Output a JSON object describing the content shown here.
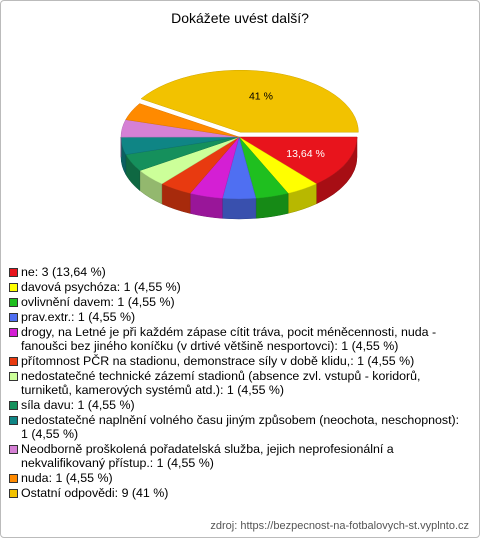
{
  "chart_data": {
    "type": "pie",
    "title": "Dokážete uvést další?",
    "categories": [
      "ne: 3 (13,64 %)",
      "davová psychóza: 1 (4,55 %)",
      "ovlivnění davem: 1 (4,55 %)",
      "prav.extr.: 1 (4,55 %)",
      "drogy, na Letné je při každém zápase cítit tráva, pocit méněcennosti,  nuda - fanoušci bez jiného koníčku  (v drtivé většině nesportovci): 1 (4,55 %)",
      "přítomnost PČR na stadionu, demonstrace síly v době klidu,: 1 (4,55 %)",
      "nedostatečné technické zázemí stadionů (absence zvl. vstupů - koridorů, turniketů, kamerových systémů atd.): 1 (4,55 %)",
      "síla davu: 1 (4,55 %)",
      "nedostatečné naplnění  volného času jiným způsobem (neochota, neschopnost): 1 (4,55 %)",
      "Neodborně proškolená pořadatelská služba, jejich neprofesionální a nekvalifikovaný přístup.: 1 (4,55 %)",
      "nuda: 1 (4,55 %)",
      "Ostatní odpovědi: 9 (41 %)"
    ],
    "values": [
      13.64,
      4.55,
      4.55,
      4.55,
      4.55,
      4.55,
      4.55,
      4.55,
      4.55,
      4.55,
      4.55,
      41
    ],
    "value_labels": [
      "13,64 %",
      null,
      null,
      null,
      null,
      null,
      null,
      null,
      null,
      null,
      null,
      "41 %"
    ],
    "colors": [
      "#e8141c",
      "#ffff00",
      "#1fbf1f",
      "#4f6ff2",
      "#d41fd4",
      "#e83a10",
      "#ccff99",
      "#15905c",
      "#0f8585",
      "#d580d5",
      "#ff8a00",
      "#f2c200"
    ],
    "source": "zdroj: https://bezpecnost-na-fotbalovych-st.vyplnto.cz"
  }
}
